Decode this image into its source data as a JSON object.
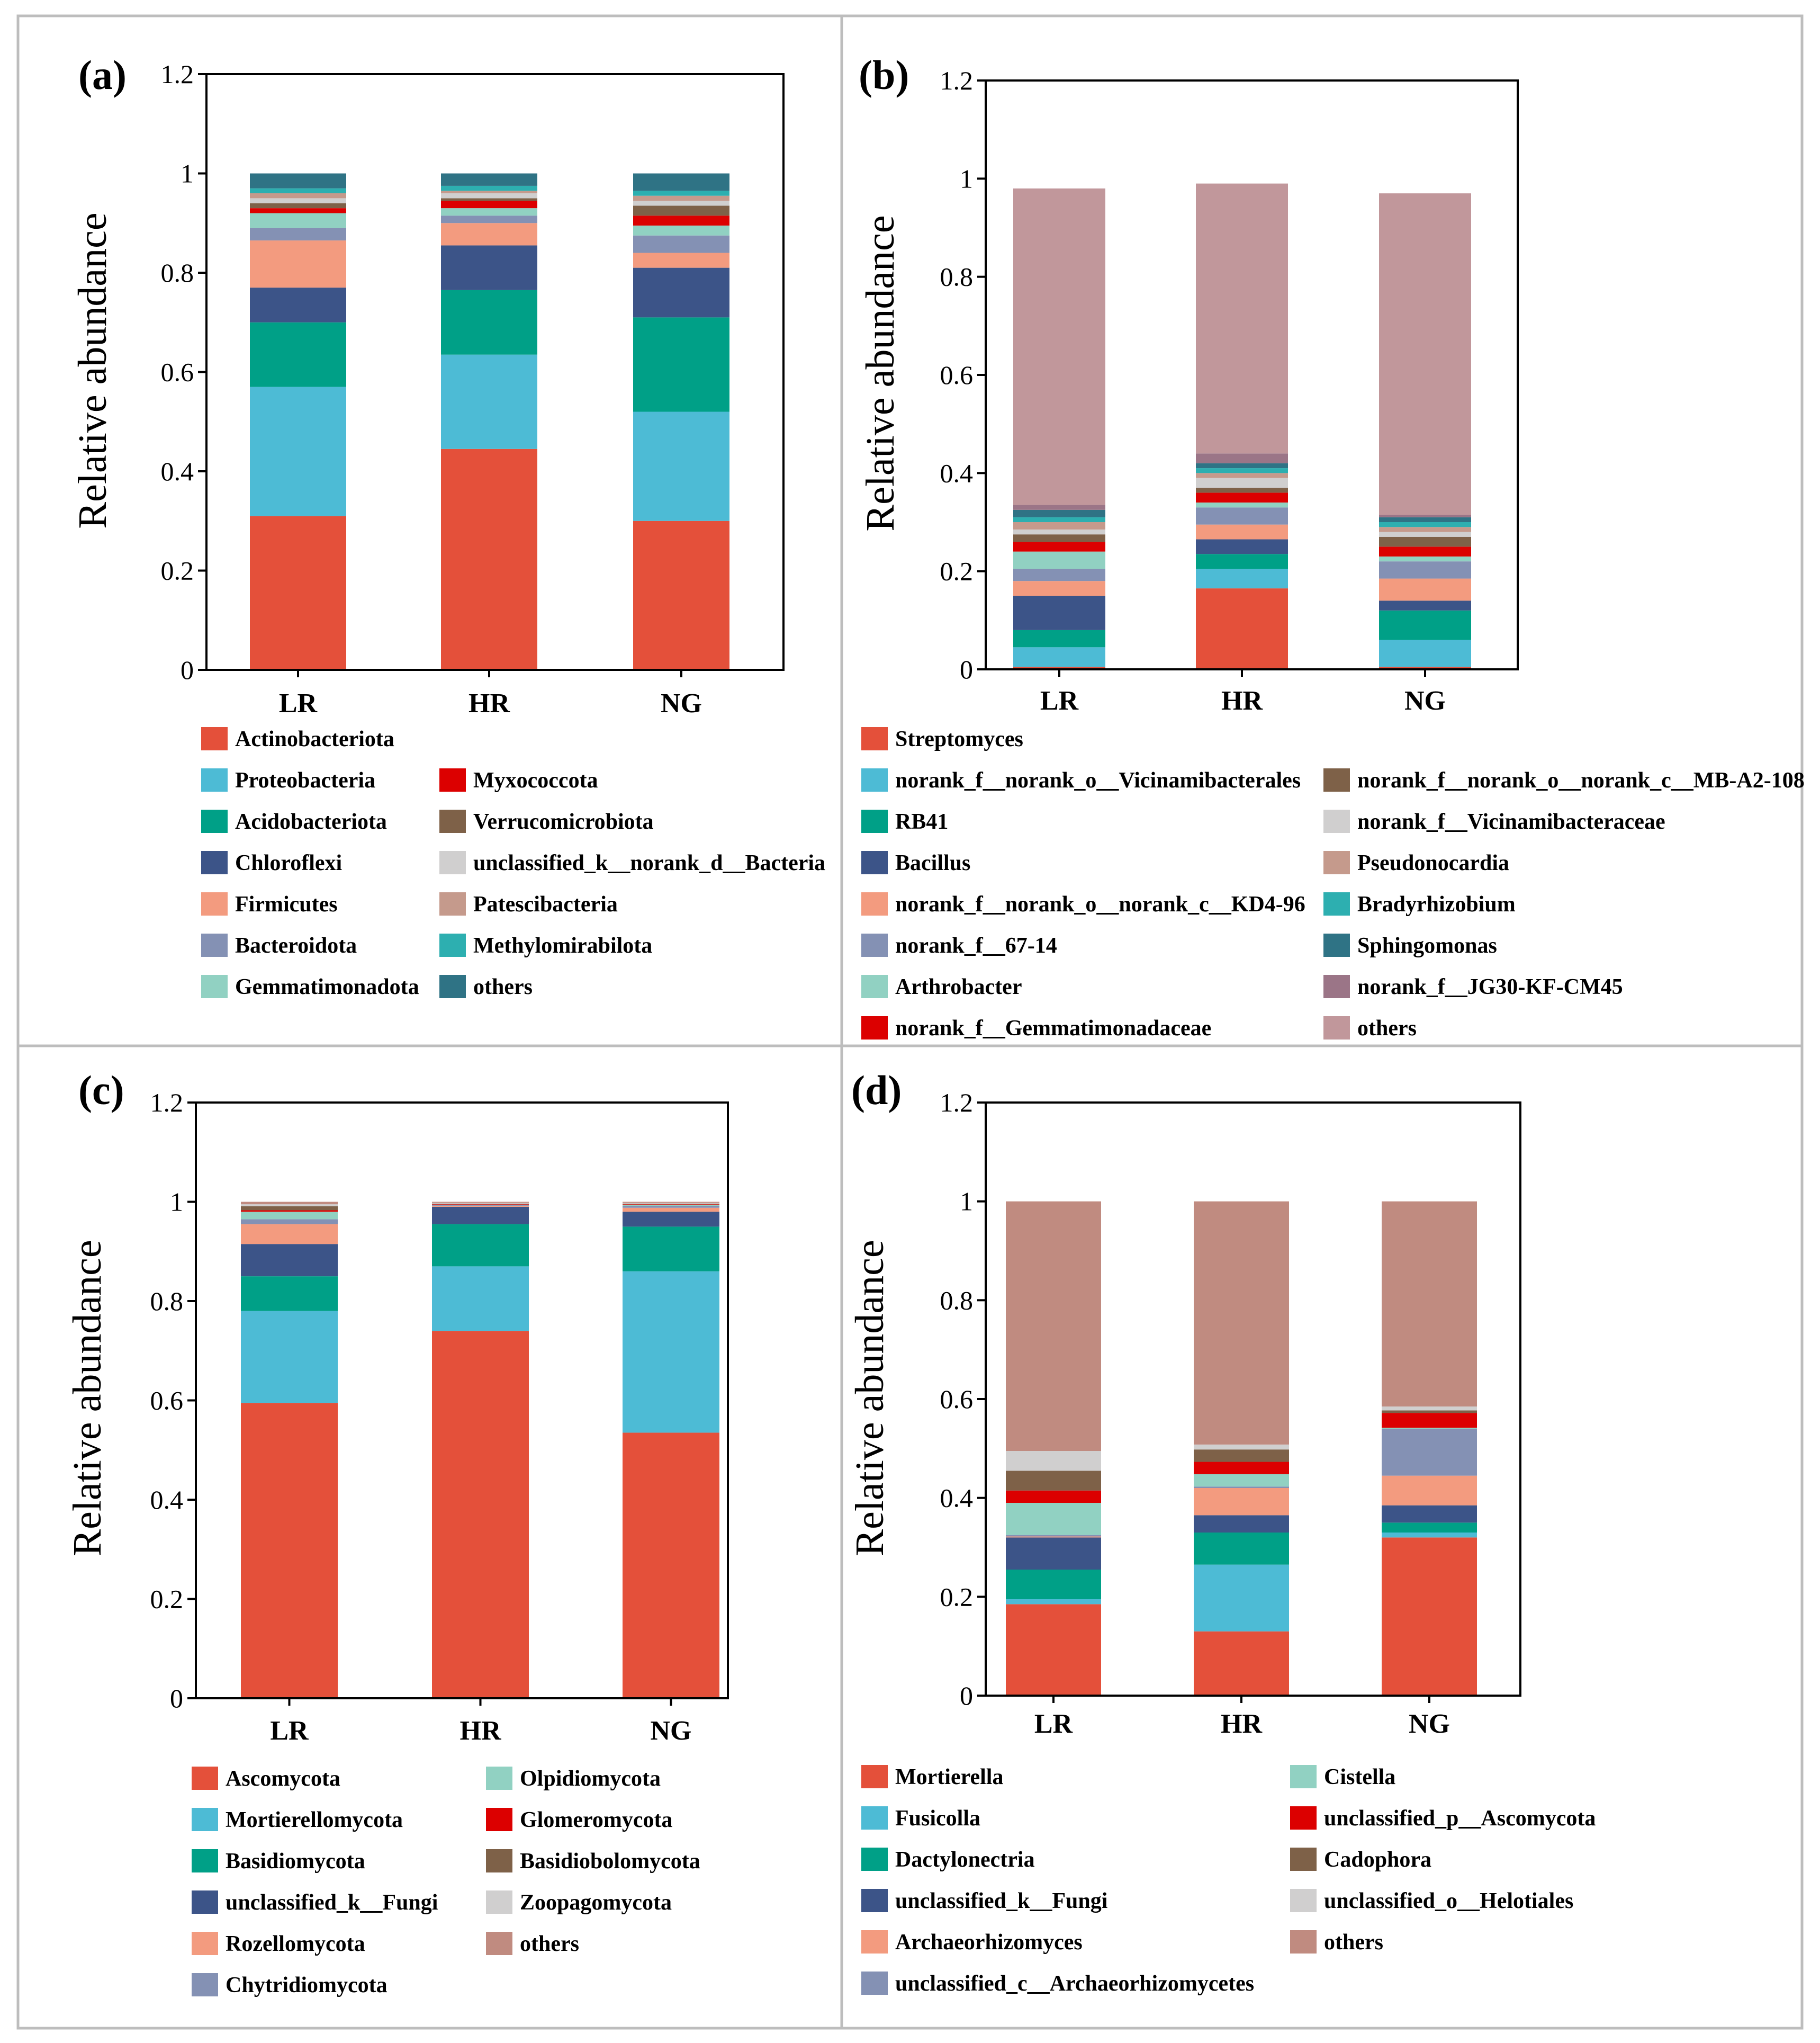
{
  "chart_data": [
    {
      "panel_label": "(a)",
      "type": "bar",
      "stacked": true,
      "ylabel": "Relative abundance",
      "xlabel": "",
      "ylim": [
        0,
        1.2
      ],
      "yticks": [
        "0",
        "0.2",
        "0.4",
        "0.6",
        "0.8",
        "1",
        "1.2"
      ],
      "categories": [
        "LR",
        "HR",
        "NG"
      ],
      "series": [
        {
          "name": "Actinobacteriota",
          "color": "#E4503A",
          "values": [
            0.31,
            0.445,
            0.3
          ]
        },
        {
          "name": "Proteobacteria",
          "color": "#4DBBD5",
          "values": [
            0.26,
            0.19,
            0.22
          ]
        },
        {
          "name": "Acidobacteriota",
          "color": "#00A087",
          "values": [
            0.13,
            0.13,
            0.19
          ]
        },
        {
          "name": "Chloroflexi",
          "color": "#3C5488",
          "values": [
            0.07,
            0.09,
            0.1
          ]
        },
        {
          "name": "Firmicutes",
          "color": "#F39B7F",
          "values": [
            0.095,
            0.045,
            0.03
          ]
        },
        {
          "name": "Bacteroidota",
          "color": "#8491B4",
          "values": [
            0.025,
            0.015,
            0.035
          ]
        },
        {
          "name": "Gemmatimonadota",
          "color": "#91D1C2",
          "values": [
            0.03,
            0.015,
            0.02
          ]
        },
        {
          "name": "Myxococcota",
          "color": "#DC0000",
          "values": [
            0.01,
            0.015,
            0.02
          ]
        },
        {
          "name": "Verrucomicrobiota",
          "color": "#7E6148",
          "values": [
            0.01,
            0.005,
            0.02
          ]
        },
        {
          "name": "unclassified_k__norank_d__Bacteria",
          "color": "#D0CFCF",
          "values": [
            0.01,
            0.01,
            0.01
          ]
        },
        {
          "name": "Patescibacteria",
          "color": "#C59A8C",
          "values": [
            0.01,
            0.005,
            0.01
          ]
        },
        {
          "name": "Methylomirabilota",
          "color": "#2DAFB0",
          "values": [
            0.01,
            0.01,
            0.01
          ]
        },
        {
          "name": "others",
          "color": "#2F7385",
          "values": [
            0.03,
            0.025,
            0.035
          ]
        }
      ],
      "legend_columns": [
        [
          "Actinobacteriota",
          "Proteobacteria",
          "Acidobacteriota",
          "Chloroflexi",
          "Firmicutes",
          "Bacteroidota",
          "Gemmatimonadota"
        ],
        [
          "Myxococcota",
          "Verrucomicrobiota",
          "unclassified_k__norank_d__Bacteria",
          "Patescibacteria",
          "Methylomirabilota",
          "others"
        ]
      ],
      "legend_start_rows": [
        0,
        1
      ]
    },
    {
      "panel_label": "(b)",
      "type": "bar",
      "stacked": true,
      "ylabel": "Relative abundance",
      "xlabel": "",
      "ylim": [
        0,
        1.2
      ],
      "yticks": [
        "0",
        "0.2",
        "0.4",
        "0.6",
        "0.8",
        "1",
        "1.2"
      ],
      "categories": [
        "LR",
        "HR",
        "NG"
      ],
      "series": [
        {
          "name": "Streptomyces",
          "color": "#E4503A",
          "values": [
            0.005,
            0.165,
            0.005
          ]
        },
        {
          "name": "norank_f__norank_o__Vicinamibacterales",
          "color": "#4DBBD5",
          "values": [
            0.04,
            0.04,
            0.055
          ]
        },
        {
          "name": "RB41",
          "color": "#00A087",
          "values": [
            0.035,
            0.03,
            0.06
          ]
        },
        {
          "name": "Bacillus",
          "color": "#3C5488",
          "values": [
            0.07,
            0.03,
            0.02
          ]
        },
        {
          "name": "norank_f__norank_o__norank_c__KD4-96",
          "color": "#F39B7F",
          "values": [
            0.03,
            0.03,
            0.045
          ]
        },
        {
          "name": "norank_f__67-14",
          "color": "#8491B4",
          "values": [
            0.025,
            0.035,
            0.035
          ]
        },
        {
          "name": "Arthrobacter",
          "color": "#91D1C2",
          "values": [
            0.035,
            0.01,
            0.01
          ]
        },
        {
          "name": "norank_f__Gemmatimonadaceae",
          "color": "#DC0000",
          "values": [
            0.02,
            0.02,
            0.02
          ]
        },
        {
          "name": "norank_f__norank_o__norank_c__MB-A2-108",
          "color": "#7E6148",
          "values": [
            0.015,
            0.01,
            0.02
          ]
        },
        {
          "name": "norank_f__Vicinamibacteraceae",
          "color": "#D0CFCF",
          "values": [
            0.01,
            0.02,
            0.01
          ]
        },
        {
          "name": "Pseudonocardia",
          "color": "#C59A8C",
          "values": [
            0.015,
            0.01,
            0.01
          ]
        },
        {
          "name": "Bradyrhizobium",
          "color": "#2DAFB0",
          "values": [
            0.01,
            0.01,
            0.01
          ]
        },
        {
          "name": "Sphingomonas",
          "color": "#2F7385",
          "values": [
            0.015,
            0.01,
            0.01
          ]
        },
        {
          "name": "norank_f__JG30-KF-CM45",
          "color": "#9B7587",
          "values": [
            0.01,
            0.02,
            0.005
          ]
        },
        {
          "name": "others",
          "color": "#C1979B",
          "values": [
            0.645,
            0.55,
            0.655
          ]
        }
      ],
      "legend_columns": [
        [
          "Streptomyces",
          "norank_f__norank_o__Vicinamibacterales",
          "RB41",
          "Bacillus",
          "norank_f__norank_o__norank_c__KD4-96",
          "norank_f__67-14",
          "Arthrobacter",
          "norank_f__Gemmatimonadaceae"
        ],
        [
          "norank_f__norank_o__norank_c__MB-A2-108",
          "norank_f__Vicinamibacteraceae",
          "Pseudonocardia",
          "Bradyrhizobium",
          "Sphingomonas",
          "norank_f__JG30-KF-CM45",
          "others"
        ]
      ],
      "legend_start_rows": [
        0,
        1
      ]
    },
    {
      "panel_label": "(c)",
      "type": "bar",
      "stacked": true,
      "ylabel": "Relative abundance",
      "xlabel": "",
      "ylim": [
        0,
        1.2
      ],
      "yticks": [
        "0",
        "0.2",
        "0.4",
        "0.6",
        "0.8",
        "1",
        "1.2"
      ],
      "categories": [
        "LR",
        "HR",
        "NG"
      ],
      "series": [
        {
          "name": "Ascomycota",
          "color": "#E4503A",
          "values": [
            0.595,
            0.74,
            0.535
          ]
        },
        {
          "name": "Mortierellomycota",
          "color": "#4DBBD5",
          "values": [
            0.185,
            0.13,
            0.325
          ]
        },
        {
          "name": "Basidiomycota",
          "color": "#00A087",
          "values": [
            0.07,
            0.085,
            0.09
          ]
        },
        {
          "name": "unclassified_k__Fungi",
          "color": "#3C5488",
          "values": [
            0.065,
            0.035,
            0.03
          ]
        },
        {
          "name": "Rozellomycota",
          "color": "#F39B7F",
          "values": [
            0.04,
            0.002,
            0.008
          ]
        },
        {
          "name": "Chytridiomycota",
          "color": "#8491B4",
          "values": [
            0.01,
            0.001,
            0.004
          ]
        },
        {
          "name": "Olpidiomycota",
          "color": "#91D1C2",
          "values": [
            0.015,
            0.001,
            0.002
          ]
        },
        {
          "name": "Glomeromycota",
          "color": "#DC0000",
          "values": [
            0.003,
            0.001,
            0.001
          ]
        },
        {
          "name": "Basidiobolomycota",
          "color": "#7E6148",
          "values": [
            0.008,
            0.001,
            0.001
          ]
        },
        {
          "name": "Zoopagomycota",
          "color": "#D0CFCF",
          "values": [
            0.004,
            0.002,
            0.002
          ]
        },
        {
          "name": "others",
          "color": "#C08B80",
          "values": [
            0.005,
            0.002,
            0.002
          ]
        }
      ],
      "legend_columns": [
        [
          "Ascomycota",
          "Mortierellomycota",
          "Basidiomycota",
          "unclassified_k__Fungi",
          "Rozellomycota",
          "Chytridiomycota"
        ],
        [
          "Olpidiomycota",
          "Glomeromycota",
          "Basidiobolomycota",
          "Zoopagomycota",
          "others"
        ]
      ],
      "legend_start_rows": [
        0,
        0
      ]
    },
    {
      "panel_label": "(d)",
      "type": "bar",
      "stacked": true,
      "ylabel": "Relative abundance",
      "xlabel": "",
      "ylim": [
        0,
        1.2
      ],
      "yticks": [
        "0",
        "0.2",
        "0.4",
        "0.6",
        "0.8",
        "1",
        "1.2"
      ],
      "categories": [
        "LR",
        "HR",
        "NG"
      ],
      "series": [
        {
          "name": "Mortierella",
          "color": "#E4503A",
          "values": [
            0.185,
            0.13,
            0.32
          ]
        },
        {
          "name": "Fusicolla",
          "color": "#4DBBD5",
          "values": [
            0.01,
            0.135,
            0.01
          ]
        },
        {
          "name": "Dactylonectria",
          "color": "#00A087",
          "values": [
            0.06,
            0.065,
            0.02
          ]
        },
        {
          "name": "unclassified_k__Fungi",
          "color": "#3C5488",
          "values": [
            0.065,
            0.035,
            0.035
          ]
        },
        {
          "name": "Archaeorhizomyces",
          "color": "#F39B7F",
          "values": [
            0.002,
            0.055,
            0.06
          ]
        },
        {
          "name": "unclassified_c__Archaeorhizomycetes",
          "color": "#8491B4",
          "values": [
            0.003,
            0.003,
            0.095
          ]
        },
        {
          "name": "Cistella",
          "color": "#91D1C2",
          "values": [
            0.065,
            0.025,
            0.002
          ]
        },
        {
          "name": "unclassified_p__Ascomycota",
          "color": "#DC0000",
          "values": [
            0.025,
            0.025,
            0.03
          ]
        },
        {
          "name": "Cadophora",
          "color": "#7E6148",
          "values": [
            0.04,
            0.025,
            0.005
          ]
        },
        {
          "name": "unclassified_o__Helotiales",
          "color": "#D0CFCF",
          "values": [
            0.04,
            0.01,
            0.008
          ]
        },
        {
          "name": "others",
          "color": "#C08B80",
          "values": [
            0.505,
            0.492,
            0.415
          ]
        }
      ],
      "legend_columns": [
        [
          "Mortierella",
          "Fusicolla",
          "Dactylonectria",
          "unclassified_k__Fungi",
          "Archaeorhizomyces",
          "unclassified_c__Archaeorhizomycetes"
        ],
        [
          "Cistella",
          "unclassified_p__Ascomycota",
          "Cadophora",
          "unclassified_o__Helotiales",
          "others"
        ]
      ],
      "legend_start_rows": [
        0,
        0
      ]
    }
  ]
}
